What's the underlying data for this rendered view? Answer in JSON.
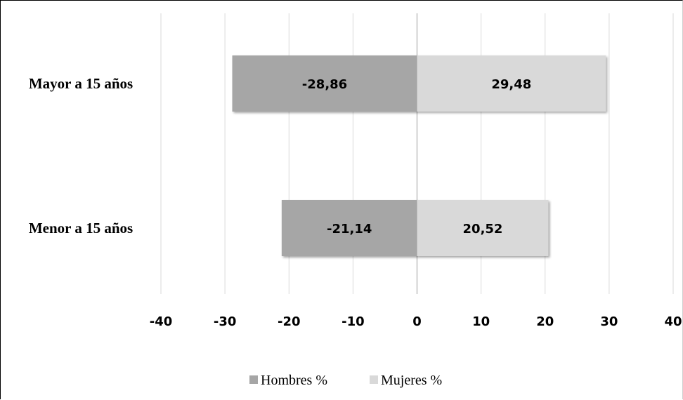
{
  "chart_data": {
    "type": "bar",
    "orientation": "horizontal",
    "stacked": true,
    "categories": [
      "Mayor a 15 años",
      "Menor a 15 años"
    ],
    "series": [
      {
        "name": "Hombres %",
        "values": [
          -28.86,
          -21.14
        ],
        "labels": [
          "-28,86",
          "-21,14"
        ],
        "color": "#a6a6a6"
      },
      {
        "name": "Mujeres %",
        "values": [
          29.48,
          20.52
        ],
        "labels": [
          "29,48",
          "20,52"
        ],
        "color": "#d9d9d9"
      }
    ],
    "xlim": [
      -40,
      40
    ],
    "xticks": [
      -40,
      -30,
      -20,
      -10,
      0,
      10,
      20,
      30,
      40
    ],
    "xtick_labels": [
      "-40",
      "-30",
      "-20",
      "-10",
      "0",
      "10",
      "20",
      "30",
      "40"
    ],
    "grid": true,
    "legend_position": "bottom"
  }
}
